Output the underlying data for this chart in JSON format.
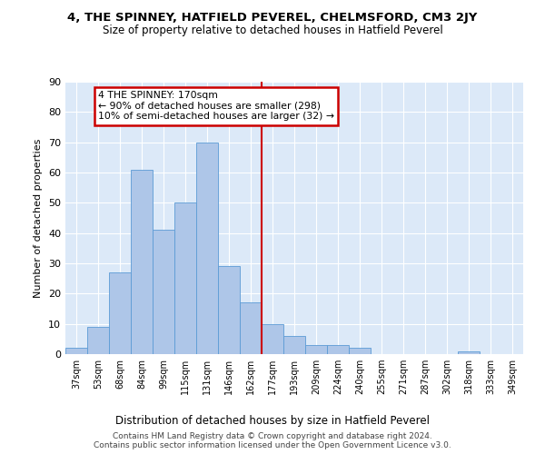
{
  "title": "4, THE SPINNEY, HATFIELD PEVEREL, CHELMSFORD, CM3 2JY",
  "subtitle": "Size of property relative to detached houses in Hatfield Peverel",
  "xlabel": "Distribution of detached houses by size in Hatfield Peverel",
  "ylabel": "Number of detached properties",
  "categories": [
    "37sqm",
    "53sqm",
    "68sqm",
    "84sqm",
    "99sqm",
    "115sqm",
    "131sqm",
    "146sqm",
    "162sqm",
    "177sqm",
    "193sqm",
    "209sqm",
    "224sqm",
    "240sqm",
    "255sqm",
    "271sqm",
    "287sqm",
    "302sqm",
    "318sqm",
    "333sqm",
    "349sqm"
  ],
  "values": [
    2,
    9,
    27,
    61,
    41,
    50,
    70,
    29,
    17,
    10,
    6,
    3,
    3,
    2,
    0,
    0,
    0,
    0,
    1,
    0,
    0
  ],
  "bar_color": "#aec6e8",
  "bar_edge_color": "#5b9bd5",
  "vline_x": 8.5,
  "vline_color": "#cc0000",
  "annotation_box_text": "4 THE SPINNEY: 170sqm\n← 90% of detached houses are smaller (298)\n10% of semi-detached houses are larger (32) →",
  "annotation_box_color": "#cc0000",
  "annotation_box_bg": "#ffffff",
  "ylim": [
    0,
    90
  ],
  "yticks": [
    0,
    10,
    20,
    30,
    40,
    50,
    60,
    70,
    80,
    90
  ],
  "bg_color": "#dce9f8",
  "grid_color": "#ffffff",
  "footer_line1": "Contains HM Land Registry data © Crown copyright and database right 2024.",
  "footer_line2": "Contains public sector information licensed under the Open Government Licence v3.0."
}
